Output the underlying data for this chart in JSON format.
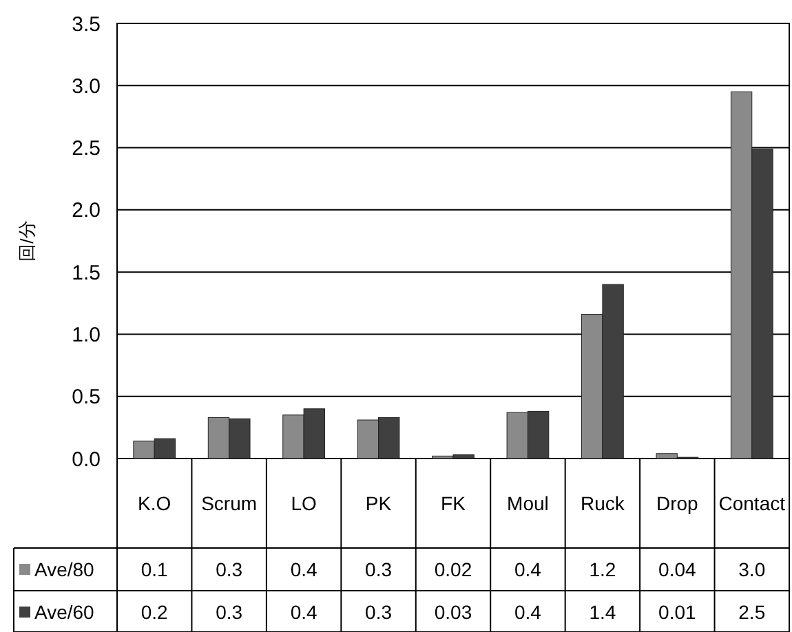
{
  "chart_data": {
    "type": "bar",
    "ylabel": "回/分",
    "categories": [
      "K.O",
      "Scrum",
      "LO",
      "PK",
      "FK",
      "Moul",
      "Ruck",
      "Drop",
      "Contact"
    ],
    "series": [
      {
        "name": "Ave/80",
        "color": "#8a8a8a",
        "values": [
          0.14,
          0.33,
          0.35,
          0.31,
          0.02,
          0.37,
          1.16,
          0.04,
          2.95
        ],
        "value_labels": [
          "0.1",
          "0.3",
          "0.4",
          "0.3",
          "0.02",
          "0.4",
          "1.2",
          "0.04",
          "3.0"
        ]
      },
      {
        "name": "Ave/60",
        "color": "#404040",
        "values": [
          0.16,
          0.32,
          0.4,
          0.33,
          0.03,
          0.38,
          1.4,
          0.01,
          2.49
        ],
        "value_labels": [
          "0.2",
          "0.3",
          "0.4",
          "0.3",
          "0.03",
          "0.4",
          "1.4",
          "0.01",
          "2.5"
        ]
      }
    ],
    "ylim": [
      0,
      3.5
    ],
    "yticks": [
      {
        "value": 0,
        "label": "0.0"
      },
      0.5,
      {
        "value": 1,
        "label": "1.0"
      },
      1.5,
      {
        "value": 2,
        "label": "2.0"
      },
      2.5,
      {
        "value": 3,
        "label": "3.0"
      },
      3.5
    ],
    "grid": "y",
    "legend": "bottom"
  }
}
